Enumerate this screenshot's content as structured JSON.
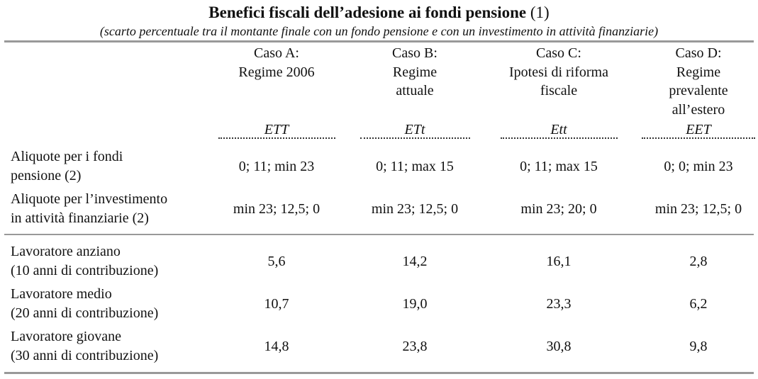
{
  "title": {
    "main": "Benefici fiscali dell’adesione ai fondi pensione",
    "note": "(1)"
  },
  "subtitle": "(scarto percentuale tra il montante finale con un fondo pensione e con un investimento in attività finanziarie)",
  "columns": [
    {
      "lines": [
        "Caso A:",
        "Regime 2006"
      ],
      "regime": "ETT"
    },
    {
      "lines": [
        "Caso B:",
        "Regime",
        "attuale"
      ],
      "regime": "ETt"
    },
    {
      "lines": [
        "Caso C:",
        "Ipotesi di riforma",
        "fiscale"
      ],
      "regime": "Ett"
    },
    {
      "lines": [
        "Caso D:",
        "Regime",
        "prevalente",
        "all’estero"
      ],
      "regime": "EET"
    }
  ],
  "rate_rows": [
    {
      "label": [
        "Aliquote per i fondi",
        "pensione (2)"
      ],
      "cells": [
        "0; 11; min 23",
        "0; 11; max 15",
        "0; 11; max 15",
        "0; 0; min 23"
      ]
    },
    {
      "label": [
        "Aliquote per l’investimento",
        "in attività finanziarie (2)"
      ],
      "cells": [
        "min 23; 12,5; 0",
        "min 23; 12,5; 0",
        "min 23; 20; 0",
        "min 23; 12,5; 0"
      ]
    }
  ],
  "worker_rows": [
    {
      "label": [
        "Lavoratore anziano",
        "(10 anni di contribuzione)"
      ],
      "cells": [
        "5,6",
        "14,2",
        "16,1",
        "2,8"
      ]
    },
    {
      "label": [
        "Lavoratore medio",
        "(20 anni di contribuzione)"
      ],
      "cells": [
        "10,7",
        "19,0",
        "23,3",
        "6,2"
      ]
    },
    {
      "label": [
        "Lavoratore giovane",
        "(30 anni di contribuzione)"
      ],
      "cells": [
        "14,8",
        "23,8",
        "30,8",
        "9,8"
      ]
    }
  ]
}
